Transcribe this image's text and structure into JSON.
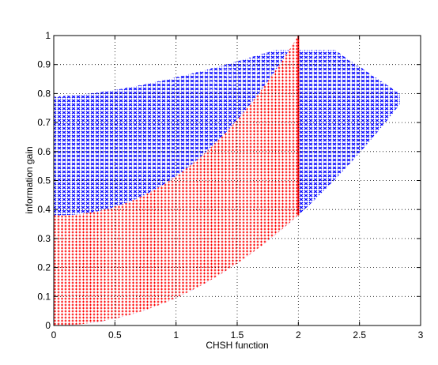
{
  "chart_data": {
    "type": "scatter",
    "title": "",
    "xlabel": "CHSH function",
    "ylabel": "information gain",
    "xlim": [
      0,
      3
    ],
    "ylim": [
      0,
      1
    ],
    "xticks": [
      "0",
      "0.5",
      "1",
      "1.5",
      "2",
      "2.5",
      "3"
    ],
    "yticks": [
      "0",
      "0.1",
      "0.2",
      "0.3",
      "0.4",
      "0.5",
      "0.6",
      "0.7",
      "0.8",
      "0.9",
      "1"
    ],
    "grid": true,
    "colors": {
      "red_region": "#ff0000",
      "blue_region": "#0000ff"
    },
    "series": [
      {
        "color": "#ff0000",
        "values": [
          [
            0.0,
            0.0
          ],
          [
            0.0,
            0.1
          ],
          [
            0.0,
            0.2
          ],
          [
            0.0,
            0.3
          ],
          [
            0.0,
            0.38
          ],
          [
            0.25,
            0.02
          ],
          [
            0.25,
            0.1
          ],
          [
            0.25,
            0.2
          ],
          [
            0.25,
            0.3
          ],
          [
            0.25,
            0.39
          ],
          [
            0.5,
            0.03
          ],
          [
            0.5,
            0.1
          ],
          [
            0.5,
            0.2
          ],
          [
            0.5,
            0.3
          ],
          [
            0.5,
            0.41
          ],
          [
            0.75,
            0.06
          ],
          [
            0.75,
            0.15
          ],
          [
            0.75,
            0.25
          ],
          [
            0.75,
            0.35
          ],
          [
            0.75,
            0.44
          ],
          [
            1.0,
            0.09
          ],
          [
            1.0,
            0.2
          ],
          [
            1.0,
            0.3
          ],
          [
            1.0,
            0.4
          ],
          [
            1.0,
            0.47
          ],
          [
            1.25,
            0.13
          ],
          [
            1.25,
            0.25
          ],
          [
            1.25,
            0.4
          ],
          [
            1.25,
            0.53
          ],
          [
            1.5,
            0.19
          ],
          [
            1.5,
            0.3
          ],
          [
            1.5,
            0.45
          ],
          [
            1.5,
            0.61
          ],
          [
            1.75,
            0.28
          ],
          [
            1.75,
            0.45
          ],
          [
            1.75,
            0.6
          ],
          [
            1.75,
            0.74
          ],
          [
            1.9,
            0.34
          ],
          [
            1.9,
            0.55
          ],
          [
            1.9,
            0.75
          ],
          [
            1.9,
            0.93
          ],
          [
            2.0,
            0.38
          ],
          [
            2.0,
            0.6
          ],
          [
            2.0,
            0.8
          ],
          [
            2.0,
            1.0
          ]
        ]
      },
      {
        "color": "#0000ff",
        "values": [
          [
            0.0,
            0.4
          ],
          [
            0.0,
            0.6
          ],
          [
            0.0,
            0.78
          ],
          [
            0.25,
            0.45
          ],
          [
            0.25,
            0.65
          ],
          [
            0.25,
            0.79
          ],
          [
            0.5,
            0.5
          ],
          [
            0.5,
            0.7
          ],
          [
            0.5,
            0.81
          ],
          [
            1.0,
            0.55
          ],
          [
            1.0,
            0.75
          ],
          [
            1.0,
            0.85
          ],
          [
            1.5,
            0.7
          ],
          [
            1.5,
            0.85
          ],
          [
            1.5,
            0.92
          ],
          [
            1.75,
            0.9
          ],
          [
            1.75,
            0.96
          ],
          [
            2.1,
            0.45
          ],
          [
            2.1,
            0.7
          ],
          [
            2.1,
            0.95
          ],
          [
            2.3,
            0.55
          ],
          [
            2.3,
            0.75
          ],
          [
            2.3,
            0.92
          ],
          [
            2.5,
            0.63
          ],
          [
            2.5,
            0.8
          ],
          [
            2.5,
            0.89
          ],
          [
            2.7,
            0.73
          ],
          [
            2.7,
            0.82
          ],
          [
            2.83,
            0.8
          ]
        ]
      }
    ]
  }
}
